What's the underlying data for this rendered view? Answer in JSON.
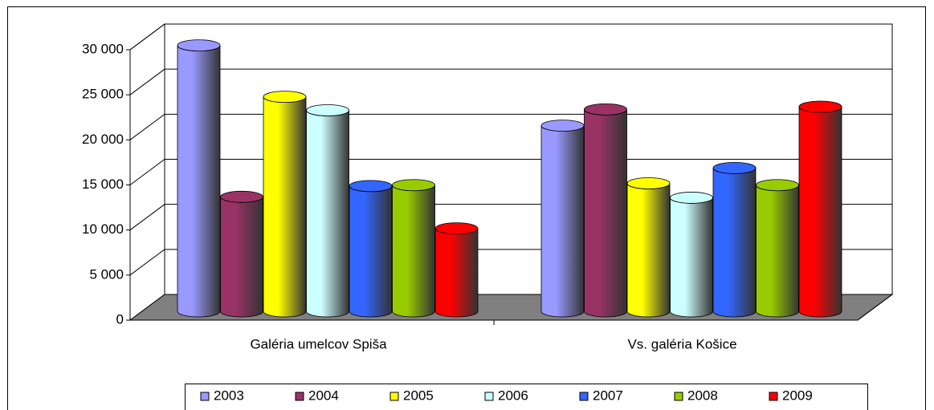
{
  "chart_data": {
    "type": "bar3d",
    "categories": [
      "Galéria umelcov Spiša",
      "Vs. galéria Košice"
    ],
    "series": [
      {
        "name": "2003",
        "color": "#9999ff",
        "values": [
          29500,
          20600
        ]
      },
      {
        "name": "2004",
        "color": "#993366",
        "values": [
          12700,
          22400
        ]
      },
      {
        "name": "2005",
        "color": "#ffff00",
        "values": [
          23800,
          14200
        ]
      },
      {
        "name": "2006",
        "color": "#ccffff",
        "values": [
          22300,
          12600
        ]
      },
      {
        "name": "2007",
        "color": "#3366ff",
        "values": [
          13900,
          15900
        ]
      },
      {
        "name": "2008",
        "color": "#99cc00",
        "values": [
          14000,
          14000
        ]
      },
      {
        "name": "2009",
        "color": "#ff0000",
        "values": [
          9200,
          22700
        ]
      }
    ],
    "ylim": [
      0,
      30000
    ],
    "yticks": [
      0,
      {
        "value": 5000,
        "label": "5 000"
      },
      {
        "value": 10000,
        "label": "10 000"
      },
      {
        "value": 15000,
        "label": "15 000"
      },
      {
        "value": 20000,
        "label": "20 000"
      },
      {
        "value": 25000,
        "label": "25 000"
      },
      {
        "value": 30000,
        "label": "30 000"
      }
    ],
    "grid": true,
    "legend": "bottom"
  }
}
